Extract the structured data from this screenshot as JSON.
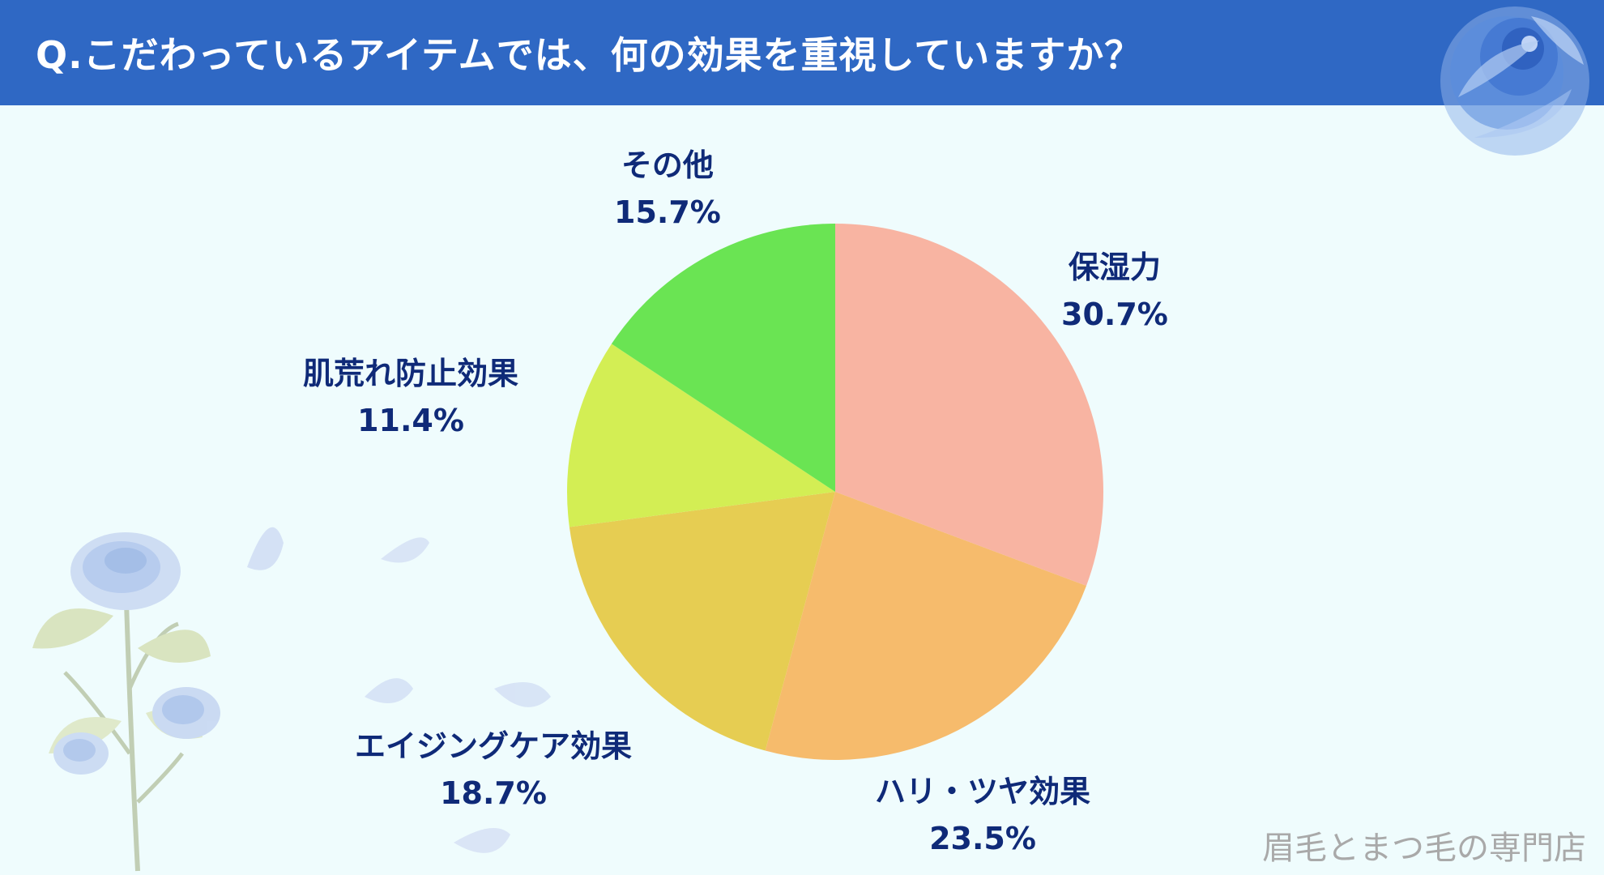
{
  "header": {
    "title": "Q.こだわっているアイテムでは、何の効果を重視していますか？"
  },
  "watermark": "眉毛とまつ毛の専門店",
  "colors": {
    "header_bg": "#2f68c4",
    "page_bg": "#effcfd",
    "label_text": "#0f2a78"
  },
  "chart_data": {
    "type": "pie",
    "title": "",
    "start_angle": "12 o'clock, clockwise",
    "slices": [
      {
        "label": "保湿力",
        "value": 30.7,
        "value_text": "30.7%",
        "color": "#f8b4a2"
      },
      {
        "label": "ハリ・ツヤ効果",
        "value": 23.5,
        "value_text": "23.5%",
        "color": "#f6bb6c"
      },
      {
        "label": "エイジングケア効果",
        "value": 18.7,
        "value_text": "18.7%",
        "color": "#e6cd52"
      },
      {
        "label": "肌荒れ防止効果",
        "value": 11.4,
        "value_text": "11.4%",
        "color": "#d3ee54"
      },
      {
        "label": "その他",
        "value": 15.7,
        "value_text": "15.7%",
        "color": "#6ae453"
      }
    ]
  }
}
